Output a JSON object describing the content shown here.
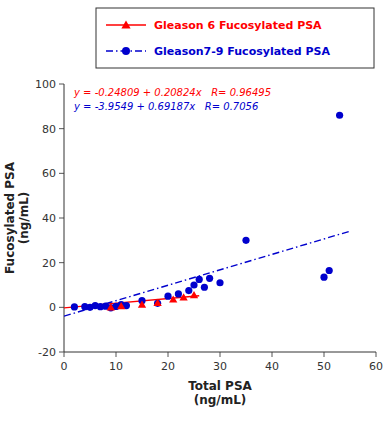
{
  "chart_data": {
    "type": "scatter",
    "xlabel": "Total PSA\n(ng/mL)",
    "ylabel": "Fucosylated PSA\n(ng/mL)",
    "xlim": [
      0,
      60
    ],
    "ylim": [
      -20,
      100
    ],
    "xticks": [
      0,
      10,
      20,
      30,
      40,
      50,
      60
    ],
    "yticks": [
      -20,
      0,
      20,
      40,
      60,
      80,
      100
    ],
    "legend": "top",
    "series": [
      {
        "name": "Gleason 6 Fucosylated PSA",
        "color": "#FF0000",
        "marker": "triangle",
        "x": [
          9,
          11,
          15,
          18,
          21,
          23,
          25
        ],
        "values": [
          0.0,
          0.5,
          1.2,
          2.0,
          3.5,
          4.5,
          5.5
        ],
        "trend": {
          "x": [
            0,
            26
          ],
          "values": [
            -0.24809,
            5.16615
          ],
          "line_style": "solid"
        }
      },
      {
        "name": "Gleason7-9 Fucosylated PSA",
        "color": "#0000CD",
        "marker": "circle",
        "x": [
          2,
          4,
          5,
          6,
          7,
          8,
          9,
          10,
          11,
          12,
          15,
          18,
          20,
          22,
          24,
          25,
          26,
          27,
          28,
          30,
          35,
          50,
          51,
          53
        ],
        "values": [
          0.2,
          0.3,
          0.0,
          0.8,
          0.3,
          0.5,
          -0.2,
          0.4,
          1.2,
          0.8,
          3.0,
          1.8,
          5.0,
          6.0,
          7.5,
          10.0,
          12.5,
          9.0,
          13.0,
          11.0,
          30.0,
          13.5,
          16.5,
          86.0
        ],
        "trend": {
          "x": [
            0,
            55
          ],
          "values": [
            -3.9549,
            34.09795
          ],
          "line_style": "dashdot"
        }
      }
    ],
    "annotations": [
      {
        "text": "y = -0.24809 + 0.20824x   R= 0.96495",
        "color": "#FF0000"
      },
      {
        "text": "y = -3.9549 + 0.69187x   R= 0.7056",
        "color": "#0000CD"
      }
    ]
  }
}
